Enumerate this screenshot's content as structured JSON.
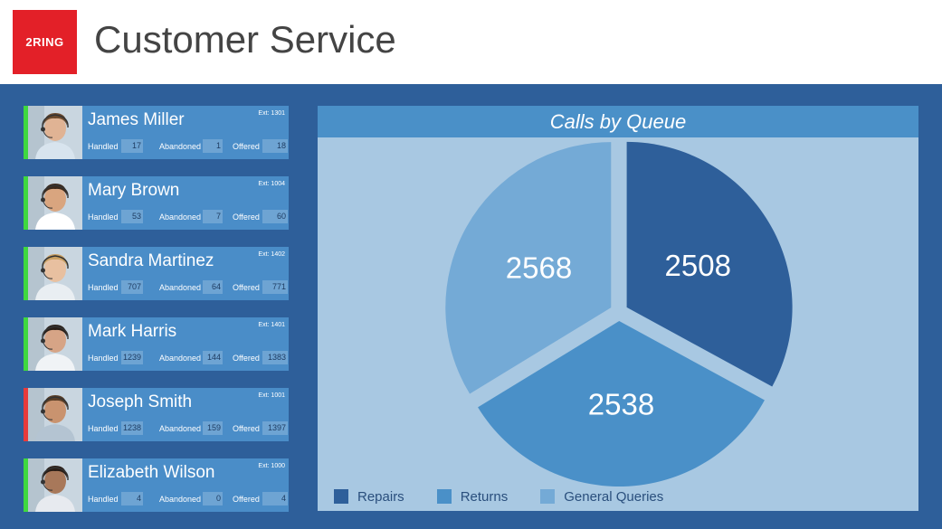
{
  "header": {
    "logo_text": "2RING",
    "title": "Customer Service"
  },
  "agents": [
    {
      "name": "James Miller",
      "ext": "Ext: 1301",
      "status_color": "#3fd83f",
      "handled": "17",
      "abandoned": "1",
      "offered": "18"
    },
    {
      "name": "Mary Brown",
      "ext": "Ext: 1004",
      "status_color": "#3fd83f",
      "handled": "53",
      "abandoned": "7",
      "offered": "60"
    },
    {
      "name": "Sandra Martinez",
      "ext": "Ext: 1402",
      "status_color": "#3fd83f",
      "handled": "707",
      "abandoned": "64",
      "offered": "771"
    },
    {
      "name": "Mark Harris",
      "ext": "Ext: 1401",
      "status_color": "#3fd83f",
      "handled": "1239",
      "abandoned": "144",
      "offered": "1383"
    },
    {
      "name": "Joseph Smith",
      "ext": "Ext: 1001",
      "status_color": "#e83a3a",
      "handled": "1238",
      "abandoned": "159",
      "offered": "1397"
    },
    {
      "name": "Elizabeth Wilson",
      "ext": "Ext: 1000",
      "status_color": "#3fd83f",
      "handled": "4",
      "abandoned": "0",
      "offered": "4"
    }
  ],
  "labels": {
    "handled": "Handled",
    "abandoned": "Abandoned",
    "offered": "Offered"
  },
  "chart_data": {
    "type": "pie",
    "title": "Calls by Queue",
    "categories": [
      "Repairs",
      "Returns",
      "General Queries"
    ],
    "values": [
      2508,
      2538,
      2568
    ],
    "colors": [
      "#2e5f9a",
      "#4a90c8",
      "#74aad6"
    ],
    "legend": "bottom-left"
  }
}
